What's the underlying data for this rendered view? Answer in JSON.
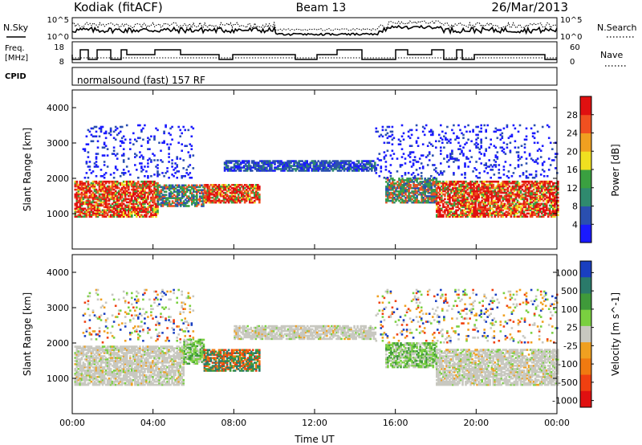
{
  "header": {
    "station": "Kodiak (fitACF)",
    "beam": "Beam 13",
    "date": "26/Mar/2013"
  },
  "strip_noise": {
    "left_label": "N.Sky",
    "right_label": "N.Search",
    "yticks_left": [
      "10^5",
      "10^0"
    ],
    "yticks_right": [
      "10^5",
      "10^0"
    ]
  },
  "strip_freq": {
    "left_label_1": "Freq.",
    "left_label_2": "[MHz]",
    "right_label": "Nave",
    "yticks_left": [
      "18",
      "8"
    ],
    "yticks_right": [
      "60",
      "0"
    ]
  },
  "strip_cpid": {
    "left_label": "CPID",
    "program": "normalsound (fast) 157 RF"
  },
  "chart_data": [
    {
      "type": "heatmap",
      "parameter": "Power",
      "ylabel": "Slant Range [km]",
      "ylim": [
        0,
        4500
      ],
      "yticks": [
        1000,
        2000,
        3000,
        4000
      ],
      "xlim": [
        0,
        24
      ],
      "xtick_labels": [
        "00:00",
        "04:00",
        "08:00",
        "12:00",
        "16:00",
        "20:00",
        "00:00"
      ],
      "xlabel": "Time UT",
      "colorbar": {
        "label": "Power [dB]",
        "ticks": [
          "4",
          "8",
          "12",
          "16",
          "20",
          "24",
          "28"
        ],
        "colors": [
          "#1a1aff",
          "#2a4fb0",
          "#2f8a6e",
          "#3aa040",
          "#f0e020",
          "#f0a020",
          "#f05020",
          "#e01010"
        ]
      },
      "echo_regions": [
        {
          "t0": 0.1,
          "t1": 4.2,
          "r0": 900,
          "r1": 1900,
          "level": "high"
        },
        {
          "t0": 4.2,
          "t1": 6.5,
          "r0": 1200,
          "r1": 1800,
          "level": "mid"
        },
        {
          "t0": 6.5,
          "t1": 9.3,
          "r0": 1300,
          "r1": 1800,
          "level": "high"
        },
        {
          "t0": 7.5,
          "t1": 11.5,
          "r0": 2200,
          "r1": 2500,
          "level": "low"
        },
        {
          "t0": 11.5,
          "t1": 15.0,
          "r0": 2200,
          "r1": 2500,
          "level": "low"
        },
        {
          "t0": 15.5,
          "t1": 18.0,
          "r0": 1300,
          "r1": 2000,
          "level": "mid"
        },
        {
          "t0": 18.0,
          "t1": 24.0,
          "r0": 900,
          "r1": 1900,
          "level": "high"
        },
        {
          "t0": 0.5,
          "t1": 6.0,
          "r0": 2000,
          "r1": 3500,
          "level": "scatter"
        },
        {
          "t0": 15.0,
          "t1": 24.0,
          "r0": 2000,
          "r1": 3500,
          "level": "scatter"
        }
      ]
    },
    {
      "type": "heatmap",
      "parameter": "Velocity",
      "ylabel": "Slant Range [km]",
      "ylim": [
        0,
        4500
      ],
      "yticks": [
        1000,
        2000,
        3000,
        4000
      ],
      "xlim": [
        0,
        24
      ],
      "xtick_labels": [
        "00:00",
        "04:00",
        "08:00",
        "12:00",
        "16:00",
        "20:00",
        "00:00"
      ],
      "xlabel": "Time UT",
      "colorbar": {
        "label": "Velocity [m s^-1]",
        "ticks": [
          "1000",
          "500",
          "100",
          "25",
          "-25",
          "-100",
          "-500",
          "-1000"
        ],
        "colors": [
          "#1a3fc0",
          "#2a7a6a",
          "#3f9a3a",
          "#7ad040",
          "#c8c8c0",
          "#f0a020",
          "#f07a10",
          "#f04010",
          "#e01010"
        ]
      },
      "echo_regions": [
        {
          "t0": 0.1,
          "t1": 5.5,
          "r0": 800,
          "r1": 1900,
          "level": "ground"
        },
        {
          "t0": 5.5,
          "t1": 6.5,
          "r0": 1400,
          "r1": 2100,
          "level": "mixed"
        },
        {
          "t0": 6.5,
          "t1": 9.3,
          "r0": 1200,
          "r1": 1800,
          "level": "flow"
        },
        {
          "t0": 8.0,
          "t1": 15.0,
          "r0": 2100,
          "r1": 2500,
          "level": "ground"
        },
        {
          "t0": 15.5,
          "t1": 18.0,
          "r0": 1300,
          "r1": 2000,
          "level": "mixed"
        },
        {
          "t0": 18.0,
          "t1": 24.0,
          "r0": 800,
          "r1": 1800,
          "level": "ground"
        },
        {
          "t0": 0.5,
          "t1": 6.0,
          "r0": 2000,
          "r1": 3500,
          "level": "scatter"
        },
        {
          "t0": 15.0,
          "t1": 24.0,
          "r0": 2000,
          "r1": 3500,
          "level": "scatter"
        }
      ]
    }
  ]
}
